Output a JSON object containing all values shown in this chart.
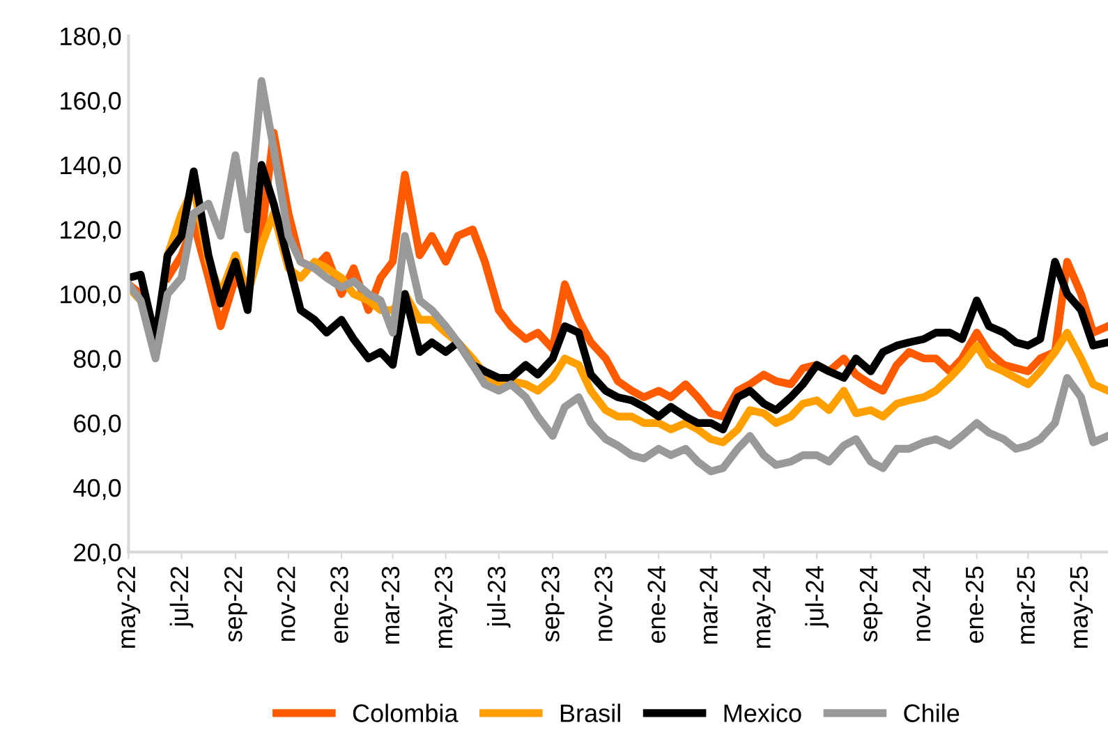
{
  "chart_data": {
    "type": "line",
    "x": [
      "2022-05-01",
      "2022-05-15",
      "2022-06-01",
      "2022-06-15",
      "2022-07-01",
      "2022-07-15",
      "2022-08-01",
      "2022-08-15",
      "2022-09-01",
      "2022-09-15",
      "2022-10-01",
      "2022-10-15",
      "2022-11-01",
      "2022-11-15",
      "2022-12-01",
      "2022-12-15",
      "2023-01-01",
      "2023-01-15",
      "2023-02-01",
      "2023-02-15",
      "2023-03-01",
      "2023-03-15",
      "2023-04-01",
      "2023-04-15",
      "2023-05-01",
      "2023-05-15",
      "2023-06-01",
      "2023-06-15",
      "2023-07-01",
      "2023-07-15",
      "2023-08-01",
      "2023-08-15",
      "2023-09-01",
      "2023-09-15",
      "2023-10-01",
      "2023-10-15",
      "2023-11-01",
      "2023-11-15",
      "2023-12-01",
      "2023-12-15",
      "2024-01-01",
      "2024-01-15",
      "2024-02-01",
      "2024-02-15",
      "2024-03-01",
      "2024-03-15",
      "2024-04-01",
      "2024-04-15",
      "2024-05-01",
      "2024-05-15",
      "2024-06-01",
      "2024-06-15",
      "2024-07-01",
      "2024-07-15",
      "2024-08-01",
      "2024-08-15",
      "2024-09-01",
      "2024-09-15",
      "2024-10-01",
      "2024-10-15",
      "2024-11-01",
      "2024-11-15",
      "2024-12-01",
      "2024-12-15",
      "2025-01-01",
      "2025-01-15",
      "2025-02-01",
      "2025-02-15",
      "2025-03-01",
      "2025-03-15",
      "2025-04-01",
      "2025-04-15",
      "2025-05-01",
      "2025-05-15",
      "2025-06-01"
    ],
    "series": [
      {
        "name": "Colombia",
        "color": "#ff5a00",
        "values": [
          103,
          100,
          null,
          105,
          112,
          122,
          105,
          90,
          105,
          100,
          118,
          150,
          125,
          110,
          108,
          112,
          100,
          108,
          95,
          105,
          110,
          137,
          112,
          118,
          110,
          118,
          120,
          110,
          95,
          90,
          86,
          88,
          83,
          103,
          92,
          85,
          80,
          73,
          70,
          68,
          70,
          68,
          72,
          68,
          63,
          62,
          70,
          72,
          75,
          73,
          72,
          77,
          78,
          76,
          80,
          75,
          72,
          70,
          78,
          82,
          80,
          80,
          76,
          80,
          88,
          82,
          78,
          77,
          76,
          80,
          82,
          110,
          100,
          88,
          90
        ]
      },
      {
        "name": "Brasil",
        "color": "#ffa000",
        "values": [
          102,
          98,
          null,
          112,
          125,
          133,
          110,
          100,
          112,
          100,
          115,
          125,
          108,
          105,
          110,
          108,
          105,
          100,
          98,
          95,
          95,
          100,
          92,
          92,
          88,
          85,
          80,
          75,
          72,
          73,
          72,
          70,
          74,
          80,
          78,
          70,
          64,
          62,
          62,
          60,
          60,
          58,
          60,
          58,
          55,
          54,
          58,
          64,
          63,
          60,
          62,
          66,
          67,
          64,
          70,
          63,
          64,
          62,
          66,
          67,
          68,
          70,
          74,
          78,
          84,
          78,
          76,
          74,
          72,
          76,
          82,
          88,
          80,
          72,
          70
        ]
      },
      {
        "name": "Mexico",
        "color": "#000000",
        "values": [
          105,
          106,
          86,
          112,
          118,
          138,
          112,
          97,
          110,
          95,
          140,
          128,
          110,
          95,
          92,
          88,
          92,
          86,
          80,
          82,
          78,
          100,
          82,
          85,
          82,
          85,
          78,
          76,
          74,
          74,
          78,
          75,
          80,
          90,
          88,
          75,
          70,
          68,
          67,
          65,
          62,
          65,
          62,
          60,
          60,
          58,
          68,
          70,
          66,
          64,
          68,
          72,
          78,
          76,
          74,
          80,
          76,
          82,
          84,
          85,
          86,
          88,
          88,
          86,
          98,
          90,
          88,
          85,
          84,
          86,
          110,
          100,
          95,
          84,
          85
        ]
      },
      {
        "name": "Chile",
        "color": "#999999",
        "values": [
          103,
          98,
          80,
          100,
          105,
          125,
          128,
          118,
          143,
          120,
          166,
          145,
          118,
          110,
          108,
          105,
          102,
          104,
          100,
          98,
          88,
          118,
          98,
          95,
          90,
          85,
          78,
          72,
          70,
          72,
          68,
          62,
          56,
          65,
          68,
          60,
          55,
          53,
          50,
          49,
          52,
          50,
          52,
          48,
          45,
          46,
          52,
          56,
          50,
          47,
          48,
          50,
          50,
          48,
          53,
          55,
          48,
          46,
          52,
          52,
          54,
          55,
          53,
          56,
          60,
          57,
          55,
          52,
          53,
          55,
          60,
          74,
          68,
          54,
          56
        ]
      }
    ],
    "xlim": [
      "2022-05-01",
      "2025-06-01"
    ],
    "xticks": [
      {
        "value": "2022-05-01",
        "label": "may-22"
      },
      {
        "value": "2022-07-01",
        "label": "jul-22"
      },
      {
        "value": "2022-09-01",
        "label": "sep-22"
      },
      {
        "value": "2022-11-01",
        "label": "nov-22"
      },
      {
        "value": "2023-01-01",
        "label": "ene-23"
      },
      {
        "value": "2023-03-01",
        "label": "mar-23"
      },
      {
        "value": "2023-05-01",
        "label": "may-23"
      },
      {
        "value": "2023-07-01",
        "label": "jul-23"
      },
      {
        "value": "2023-09-01",
        "label": "sep-23"
      },
      {
        "value": "2023-11-01",
        "label": "nov-23"
      },
      {
        "value": "2024-01-01",
        "label": "ene-24"
      },
      {
        "value": "2024-03-01",
        "label": "mar-24"
      },
      {
        "value": "2024-05-01",
        "label": "may-24"
      },
      {
        "value": "2024-07-01",
        "label": "jul-24"
      },
      {
        "value": "2024-09-01",
        "label": "sep-24"
      },
      {
        "value": "2024-11-01",
        "label": "nov-24"
      },
      {
        "value": "2025-01-01",
        "label": "ene-25"
      },
      {
        "value": "2025-03-01",
        "label": "mar-25"
      },
      {
        "value": "2025-05-01",
        "label": "may-25"
      }
    ],
    "ylim": [
      20,
      180
    ],
    "yticks": [
      {
        "value": 20,
        "label": "20,0"
      },
      {
        "value": 40,
        "label": "40,0"
      },
      {
        "value": 60,
        "label": "60,0"
      },
      {
        "value": 80,
        "label": "80,0"
      },
      {
        "value": 100,
        "label": "100,0"
      },
      {
        "value": 120,
        "label": "120,0"
      },
      {
        "value": 140,
        "label": "140,0"
      },
      {
        "value": 160,
        "label": "160,0"
      },
      {
        "value": 180,
        "label": "180,0"
      }
    ],
    "grid": false,
    "legend": "bottom",
    "marker": "none",
    "line_style": "solid"
  }
}
